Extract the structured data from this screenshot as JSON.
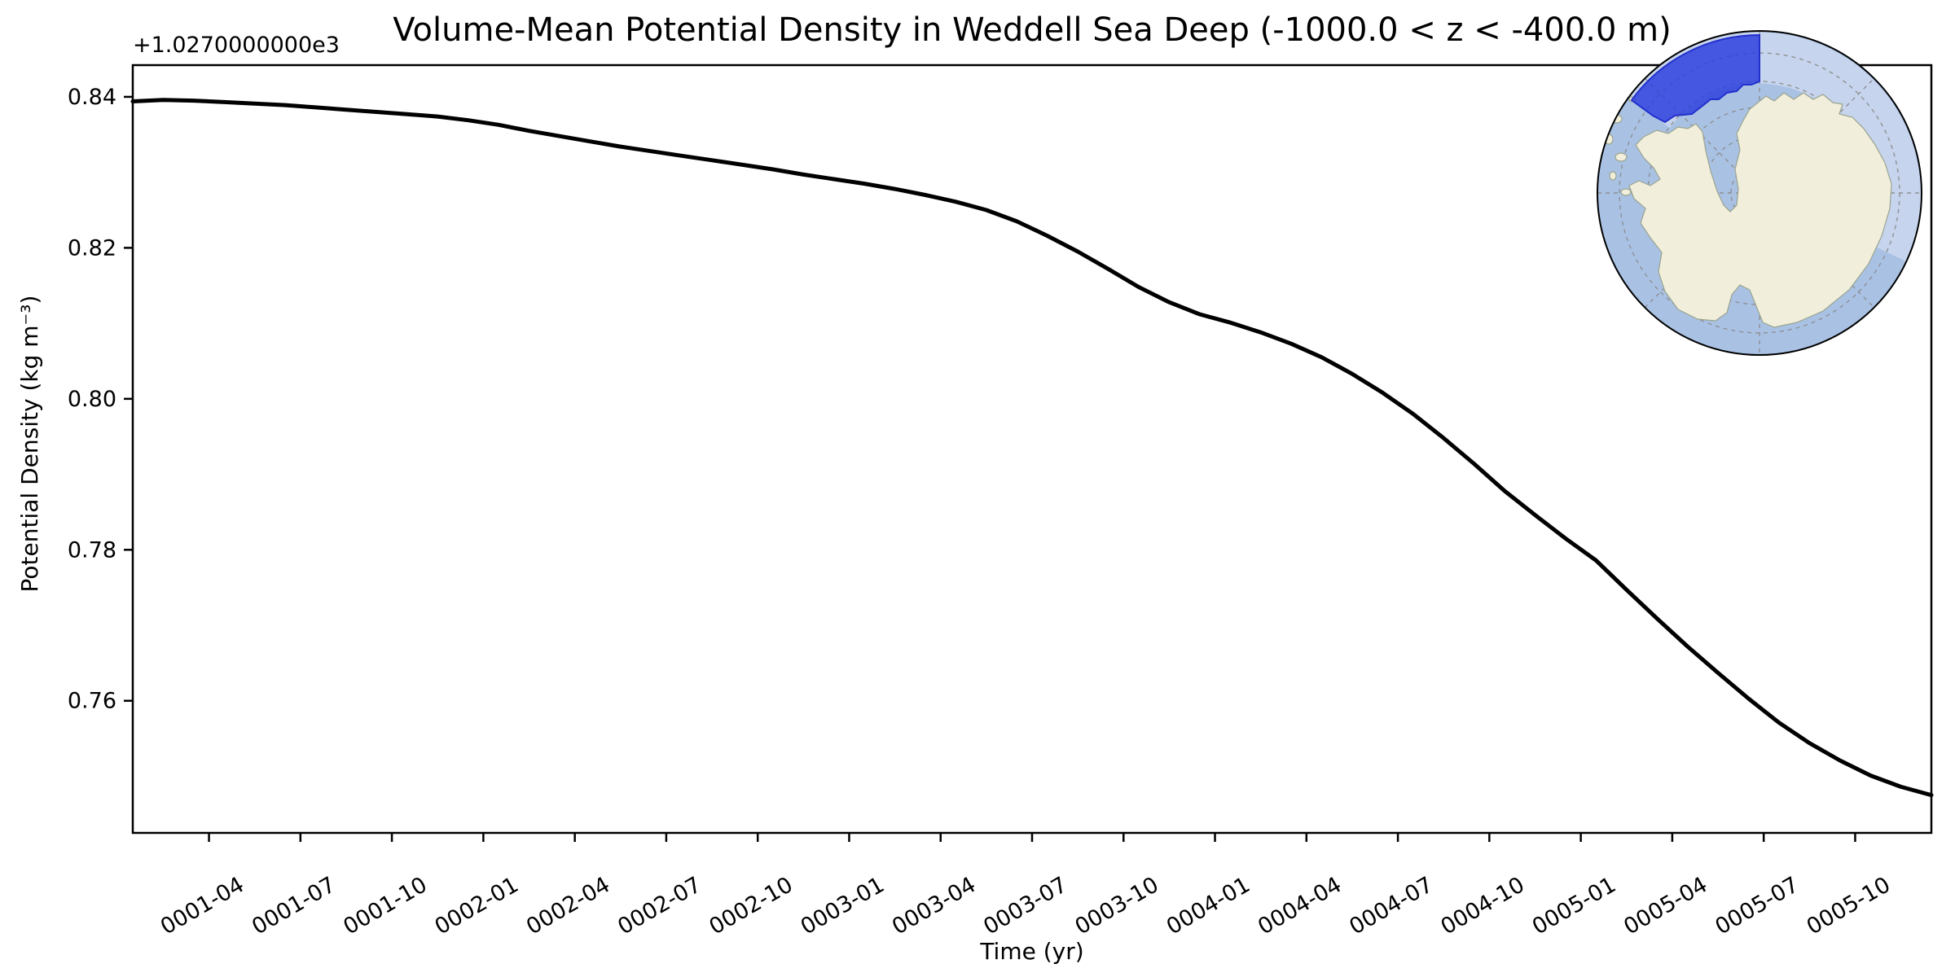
{
  "figure": {
    "background_color": "#ffffff"
  },
  "chart_data": {
    "type": "line",
    "title": "Volume-Mean Potential Density in Weddell Sea Deep (-1000.0 < z < -400.0 m)",
    "xlabel": "Time (yr)",
    "ylabel": "Potential Density (kg m⁻³)",
    "y_axis_offset_label": "+1.0270000000e3",
    "legend_position": "none",
    "grid": false,
    "line_color": "#000000",
    "line_width": 5,
    "ylim": [
      1027.7425,
      1027.8442
    ],
    "xlim": [
      "0001-01-16",
      "0005-12-16"
    ],
    "y_tick_offset": 1027.0,
    "y_tick_labels": [
      "0.76",
      "0.78",
      "0.80",
      "0.82",
      "0.84"
    ],
    "x_tick_labels": [
      "0001-04",
      "0001-07",
      "0001-10",
      "0002-01",
      "0002-04",
      "0002-07",
      "0002-10",
      "0003-01",
      "0003-04",
      "0003-07",
      "0003-10",
      "0004-01",
      "0004-04",
      "0004-07",
      "0004-10",
      "0005-01",
      "0005-04",
      "0005-07",
      "0005-10"
    ],
    "x": [
      "0001-01",
      "0001-02",
      "0001-03",
      "0001-04",
      "0001-05",
      "0001-06",
      "0001-07",
      "0001-08",
      "0001-09",
      "0001-10",
      "0001-11",
      "0001-12",
      "0002-01",
      "0002-02",
      "0002-03",
      "0002-04",
      "0002-05",
      "0002-06",
      "0002-07",
      "0002-08",
      "0002-09",
      "0002-10",
      "0002-11",
      "0002-12",
      "0003-01",
      "0003-02",
      "0003-03",
      "0003-04",
      "0003-05",
      "0003-06",
      "0003-07",
      "0003-08",
      "0003-09",
      "0003-10",
      "0003-11",
      "0003-12",
      "0004-01",
      "0004-02",
      "0004-03",
      "0004-04",
      "0004-05",
      "0004-06",
      "0004-07",
      "0004-08",
      "0004-09",
      "0004-10",
      "0004-11",
      "0004-12",
      "0005-01",
      "0005-02",
      "0005-03",
      "0005-04",
      "0005-05",
      "0005-06",
      "0005-07",
      "0005-08",
      "0005-09",
      "0005-10",
      "0005-11",
      "0005-12"
    ],
    "values": [
      1027.8394,
      1027.8396,
      1027.8395,
      1027.8393,
      1027.8391,
      1027.8389,
      1027.8386,
      1027.8383,
      1027.838,
      1027.8377,
      1027.8374,
      1027.8369,
      1027.8363,
      1027.8355,
      1027.8348,
      1027.8341,
      1027.8334,
      1027.8328,
      1027.8322,
      1027.8316,
      1027.831,
      1027.8304,
      1027.8297,
      1027.8291,
      1027.8285,
      1027.8278,
      1027.827,
      1027.8261,
      1027.825,
      1027.8235,
      1027.8216,
      1027.8195,
      1027.8172,
      1027.8148,
      1027.8128,
      1027.8112,
      1027.8101,
      1027.8088,
      1027.8073,
      1027.8055,
      1027.8033,
      1027.8008,
      1027.798,
      1027.7948,
      1027.7914,
      1027.7878,
      1027.7846,
      1027.7815,
      1027.7786,
      1027.7747,
      1027.7709,
      1027.7672,
      1027.7637,
      1027.7603,
      1027.7571,
      1027.7544,
      1027.7521,
      1027.7501,
      1027.7486,
      1027.7475
    ]
  },
  "inset_map": {
    "projection": "south-polar-stereographic",
    "region_name": "Weddell Sea Deep",
    "ocean_color": "#a9c2e4",
    "outer_ocean_color": "#c6d4ed",
    "land_color": "#f1efdb",
    "coast_color": "#9aa38f",
    "region_fill": "#2e41dd",
    "region_edge": "#2330cc",
    "grid_color": "#8a8a8a",
    "border_color": "#000000"
  }
}
